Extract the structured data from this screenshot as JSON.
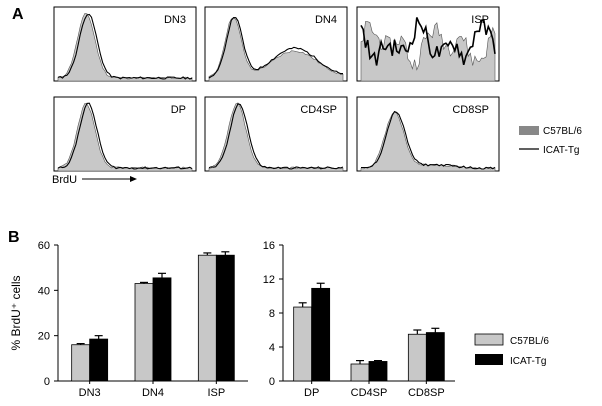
{
  "panel_a_label": "A",
  "panel_b_label": "B",
  "histogram_panels": [
    {
      "label": "DN3",
      "shape": "left_peak"
    },
    {
      "label": "DN4",
      "shape": "bimodal"
    },
    {
      "label": "ISP",
      "shape": "noisy"
    },
    {
      "label": "DP",
      "shape": "left_peak"
    },
    {
      "label": "CD4SP",
      "shape": "left_peak"
    },
    {
      "label": "CD8SP",
      "shape": "left_peak_tail"
    }
  ],
  "histogram_legend": [
    {
      "label": "C57BL/6",
      "color": "#c8c8c8"
    },
    {
      "label": "ICAT-Tg",
      "color": "#000000"
    }
  ],
  "histogram_xlabel": "BrdU",
  "bar_legend": [
    {
      "label": "C57BL/6",
      "color": "#c8c8c8"
    },
    {
      "label": "ICAT-Tg",
      "color": "#000000"
    }
  ],
  "chart_data": [
    {
      "type": "bar",
      "ylabel": "% BrdU⁺ cells",
      "ylim": [
        0,
        60
      ],
      "yticks": [
        "0",
        "20",
        "40",
        "60"
      ],
      "categories": [
        "DN3",
        "DN4",
        "ISP"
      ],
      "series": [
        {
          "name": "C57BL/6",
          "values": [
            16,
            43,
            55.5
          ],
          "errors": [
            0.5,
            0.5,
            1.0
          ]
        },
        {
          "name": "ICAT-Tg",
          "values": [
            18.5,
            45.5,
            55.5
          ],
          "errors": [
            1.5,
            2.0,
            1.5
          ]
        }
      ]
    },
    {
      "type": "bar",
      "ylim": [
        0,
        16
      ],
      "yticks": [
        "0",
        "4",
        "8",
        "12",
        "16"
      ],
      "categories": [
        "DP",
        "CD4SP",
        "CD8SP"
      ],
      "series": [
        {
          "name": "C57BL/6",
          "values": [
            8.7,
            2.0,
            5.5
          ],
          "errors": [
            0.5,
            0.4,
            0.5
          ]
        },
        {
          "name": "ICAT-Tg",
          "values": [
            10.9,
            2.3,
            5.7
          ],
          "errors": [
            0.6,
            0.1,
            0.5
          ]
        }
      ]
    }
  ]
}
